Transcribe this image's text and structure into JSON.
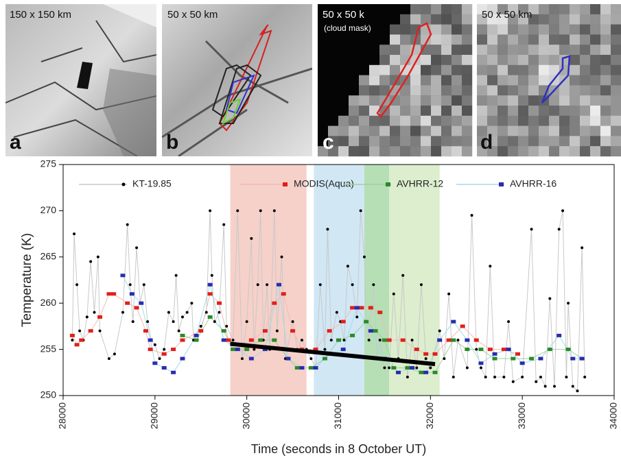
{
  "panels": [
    {
      "letter": "a",
      "caption": "150 x 150 km"
    },
    {
      "letter": "b",
      "caption": "50 x 50 km"
    },
    {
      "letter": "c",
      "caption": "50 x 50 k",
      "note": "(cloud mask)"
    },
    {
      "letter": "d",
      "caption": "50 x 50 km"
    }
  ],
  "chart_data": {
    "type": "scatter",
    "x_label": "Time (seconds in 8 October UT)",
    "y_label": "Temperature (K)",
    "xlim": [
      28000,
      34000
    ],
    "xticks": [
      28000,
      29000,
      30000,
      31000,
      32000,
      33000,
      34000
    ],
    "ylim": [
      250,
      275
    ],
    "yticks": [
      250,
      255,
      260,
      265,
      270,
      275
    ],
    "legend": "top",
    "spans": [
      {
        "x": [
          29820,
          30650
        ],
        "color": "#f5c9c0"
      },
      {
        "x": [
          30730,
          31280
        ],
        "color": "#c9e3f2"
      },
      {
        "x": [
          31280,
          31550
        ],
        "color": "#a9d9a9"
      },
      {
        "x": [
          31550,
          32100
        ],
        "color": "#d6ebc4"
      }
    ],
    "trend": {
      "x": [
        29820,
        32050
      ],
      "y": [
        255.6,
        253.4
      ],
      "color": "#000000"
    },
    "series": [
      {
        "name": "KT-19.85",
        "color": "#000000",
        "line_color": "#c8c8c8",
        "marker": "circle",
        "x": [
          28100,
          28120,
          28150,
          28180,
          28220,
          28260,
          28300,
          28340,
          28380,
          28400,
          28500,
          28560,
          28650,
          28700,
          28730,
          28760,
          28800,
          28840,
          28880,
          28920,
          28960,
          29000,
          29050,
          29100,
          29150,
          29200,
          29230,
          29260,
          29300,
          29350,
          29400,
          29420,
          29500,
          29560,
          29600,
          29620,
          29650,
          29700,
          29750,
          29780,
          29850,
          29900,
          29950,
          30000,
          30050,
          30080,
          30120,
          30150,
          30180,
          30220,
          30250,
          30300,
          30330,
          30380,
          30420,
          30500,
          30550,
          30600,
          30650,
          30700,
          30750,
          30800,
          30850,
          30880,
          30920,
          30980,
          31020,
          31060,
          31100,
          31150,
          31200,
          31240,
          31280,
          31300,
          31330,
          31380,
          31420,
          31450,
          31500,
          31550,
          31600,
          31650,
          31700,
          31750,
          31800,
          31850,
          31900,
          31950,
          32000,
          32100,
          32150,
          32200,
          32250,
          32300,
          32400,
          32450,
          32500,
          32550,
          32600,
          32650,
          32700,
          32800,
          32850,
          32900,
          33000,
          33100,
          33150,
          33200,
          33250,
          33300,
          33350,
          33400,
          33440,
          33480,
          33500,
          33550,
          33600,
          33650,
          33680
        ],
        "values": [
          256,
          267.5,
          262,
          257,
          256,
          258.5,
          264.5,
          259,
          265,
          257,
          254,
          254.5,
          259,
          268.5,
          262,
          258,
          266,
          260,
          262,
          258,
          256,
          255.5,
          254,
          255,
          259,
          258,
          263,
          257,
          258.5,
          259,
          260,
          256,
          257.5,
          259,
          270,
          263,
          258,
          259,
          268.5,
          257.5,
          256,
          270,
          254,
          258,
          267,
          255,
          262,
          270,
          256,
          262,
          255,
          270,
          257,
          265,
          254,
          258,
          255,
          256,
          255,
          254,
          253,
          262,
          255,
          268,
          256,
          259,
          258,
          256,
          264,
          262,
          258.5,
          270,
          265,
          258,
          256,
          262,
          254,
          256,
          253,
          253,
          261,
          254,
          263,
          252,
          256,
          253,
          262,
          254,
          253,
          257,
          254,
          261,
          252,
          256,
          253,
          269.5,
          255,
          253,
          252,
          264,
          252,
          252,
          258,
          251.5,
          252,
          268,
          251.5,
          252,
          251,
          260.5,
          251,
          268,
          270,
          252,
          260,
          251,
          250.5,
          266,
          252
        ]
      },
      {
        "name": "MODIS(Aqua)",
        "color": "#e0201a",
        "line_color": "#f4b8b8",
        "marker": "square",
        "x": [
          28100,
          28150,
          28200,
          28300,
          28400,
          28500,
          28550,
          28700,
          28800,
          28900,
          28950,
          29100,
          29200,
          29300,
          29500,
          29600,
          29700,
          29800,
          29950,
          30050,
          30200,
          30300,
          30400,
          30500,
          30600,
          30750,
          30900,
          31050,
          31150,
          31250,
          31350,
          31450,
          31550,
          31700,
          31850,
          31950,
          32050,
          32200,
          32350,
          32500,
          32650,
          32800,
          32950
        ],
        "values": [
          256.5,
          255.5,
          256,
          257,
          258.5,
          261,
          261,
          260,
          259.5,
          257,
          255,
          254.5,
          255,
          256,
          257,
          261,
          260,
          256,
          255.5,
          256,
          257,
          260,
          261,
          257,
          255,
          255,
          257,
          258,
          259.5,
          259.5,
          259.5,
          259,
          256,
          256,
          255,
          254.5,
          254.5,
          256,
          257.5,
          256,
          255,
          255,
          254.5
        ]
      },
      {
        "name": "AVHRR-12",
        "color": "#2a8a2a",
        "line_color": "#9fd09f",
        "marker": "square",
        "x": [
          29300,
          29450,
          29600,
          29750,
          29850,
          30000,
          30150,
          30300,
          30450,
          30550,
          30700,
          30850,
          31000,
          31150,
          31300,
          31400,
          31500,
          31600,
          31750,
          31900,
          32050,
          32250,
          32400,
          32550,
          32700,
          32900,
          33100,
          33300,
          33500,
          33650
        ],
        "values": [
          256.5,
          256,
          258.5,
          257,
          255,
          255,
          256,
          256,
          254,
          253,
          253,
          254,
          256,
          256.5,
          258,
          257,
          256,
          253,
          253,
          252.5,
          252.5,
          256,
          255,
          255,
          254,
          254,
          254,
          255,
          255,
          254
        ]
      },
      {
        "name": "AVHRR-16",
        "color": "#2b2bb0",
        "line_color": "#9fdcea",
        "marker": "square",
        "x": [
          28650,
          28750,
          28850,
          28950,
          29000,
          29100,
          29200,
          29300,
          29450,
          29600,
          29750,
          29900,
          30050,
          30200,
          30350,
          30450,
          30600,
          30750,
          30900,
          31050,
          31200,
          31350,
          31500,
          31650,
          31800,
          31950,
          32100,
          32250,
          32400,
          32550,
          32700,
          32850,
          33000,
          33200,
          33400,
          33550,
          33650
        ],
        "values": [
          263,
          261,
          260,
          256,
          253.5,
          253,
          252.5,
          254,
          256.5,
          262,
          256,
          255,
          254,
          255,
          262,
          254,
          253,
          253,
          254.5,
          255,
          259.5,
          257,
          254,
          252.5,
          253,
          252.5,
          256,
          258,
          256,
          253.5,
          254.5,
          255,
          253.5,
          254,
          256.5,
          254,
          254
        ]
      }
    ]
  }
}
